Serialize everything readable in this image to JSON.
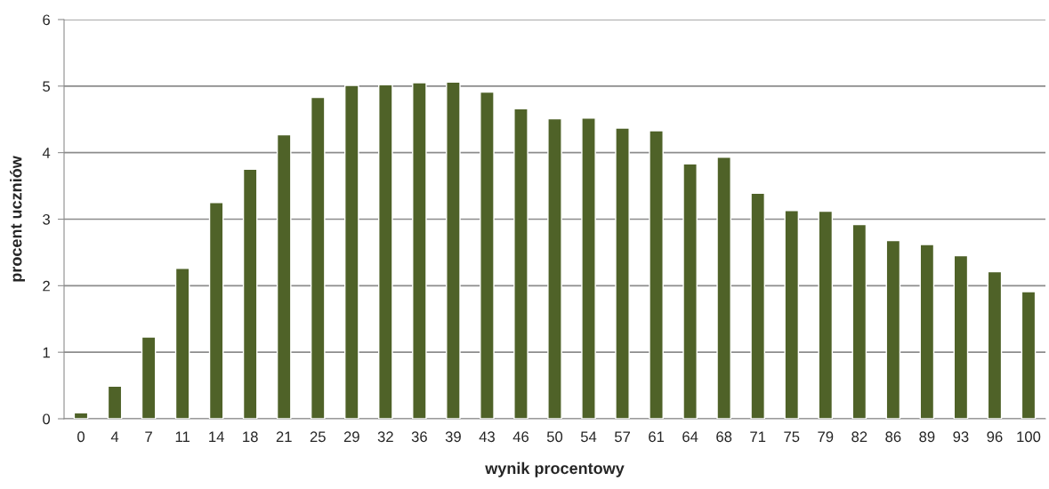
{
  "chart_data": {
    "type": "bar",
    "categories": [
      "0",
      "4",
      "7",
      "11",
      "14",
      "18",
      "21",
      "25",
      "29",
      "32",
      "36",
      "39",
      "43",
      "46",
      "50",
      "54",
      "57",
      "61",
      "64",
      "68",
      "71",
      "75",
      "79",
      "82",
      "86",
      "89",
      "93",
      "96",
      "100"
    ],
    "values": [
      0.09,
      0.49,
      1.23,
      2.26,
      3.25,
      3.75,
      4.27,
      4.83,
      5.01,
      5.02,
      5.05,
      5.06,
      4.91,
      4.66,
      4.51,
      4.52,
      4.37,
      4.33,
      3.83,
      3.93,
      3.39,
      3.13,
      3.12,
      2.92,
      2.68,
      2.62,
      2.45,
      2.21,
      1.91
    ],
    "color": "#4f6228",
    "xlabel": "wynik procentowy",
    "ylabel": "procent uczniów",
    "ylim": [
      0,
      6
    ],
    "yticks": [
      0,
      1,
      2,
      3,
      4,
      5,
      6
    ],
    "grid": "y",
    "legend": false
  }
}
